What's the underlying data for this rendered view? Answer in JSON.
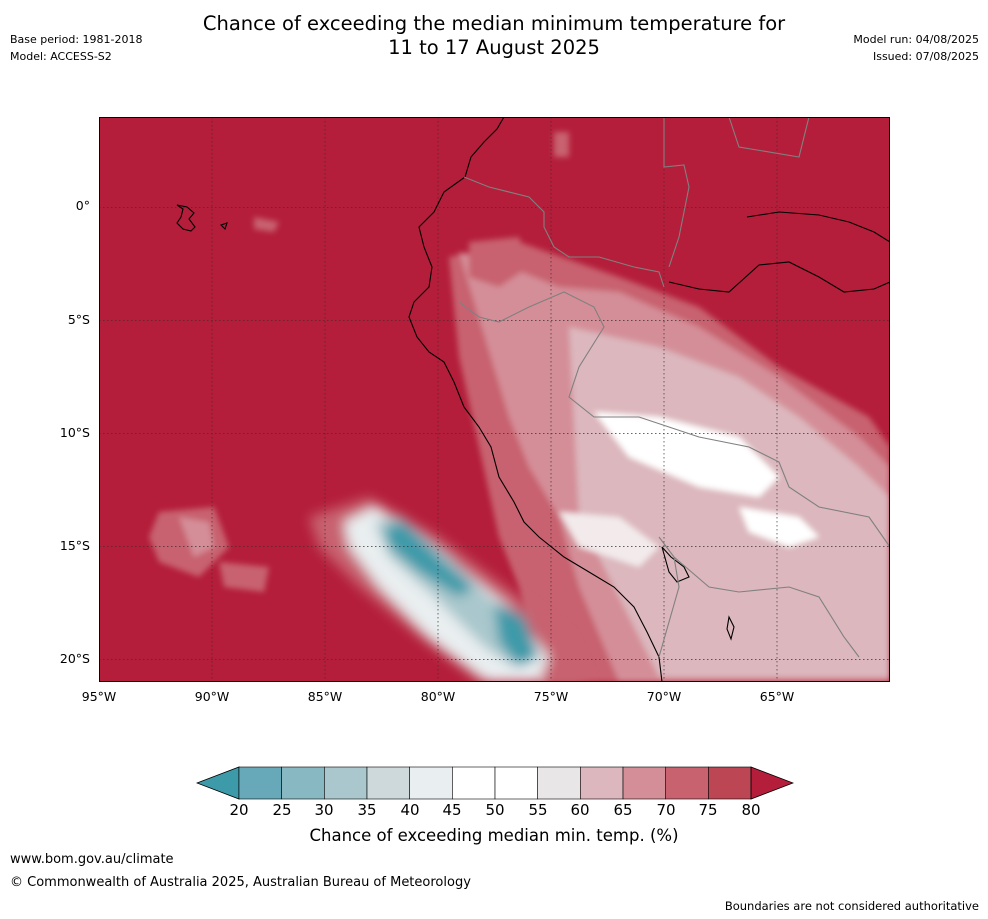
{
  "header": {
    "title_line1": "Chance of exceeding the median minimum temperature for",
    "title_line2": "11 to 17 August 2025",
    "base_period": "Base period: 1981-2018",
    "model": "Model: ACCESS-S2",
    "model_run": "Model run: 04/08/2025",
    "issued": "Issued: 07/08/2025"
  },
  "map": {
    "lat_labels": [
      "0°",
      "5°S",
      "10°S",
      "15°S",
      "20°S"
    ],
    "lon_labels": [
      "95°W",
      "90°W",
      "85°W",
      "80°W",
      "75°W",
      "70°W",
      "65°W"
    ],
    "lat_values": [
      0,
      -5,
      -10,
      -15,
      -20
    ],
    "lon_values": [
      -95,
      -90,
      -85,
      -80,
      -75,
      -70,
      -65
    ],
    "extent": {
      "lon_min": -95,
      "lon_max": -60,
      "lat_min": -21,
      "lat_max": 4
    },
    "background_category": "above 80%",
    "colors": {
      "high": "#b41e3a",
      "coast": "#000000",
      "border": "#808080",
      "grid": "#333333"
    }
  },
  "colorbar": {
    "title": "Chance of exceeding median min. temp. (%)",
    "labels": [
      "20",
      "25",
      "30",
      "35",
      "40",
      "45",
      "50",
      "55",
      "60",
      "65",
      "70",
      "75",
      "80"
    ],
    "colors": [
      "#3d9aa9",
      "#67a9b8",
      "#88b8c2",
      "#a9c7cc",
      "#ced9dc",
      "#e9eef0",
      "#ffffff",
      "#ffffff",
      "#e9e6e7",
      "#dcb7bd",
      "#d48e98",
      "#c8626f",
      "#bc4654",
      "#b41e3a"
    ]
  },
  "footer": {
    "url": "www.bom.gov.au/climate",
    "copyright": "© Commonwealth of Australia 2025, Australian Bureau of Meteorology",
    "note": "Boundaries are not considered authoritative"
  }
}
